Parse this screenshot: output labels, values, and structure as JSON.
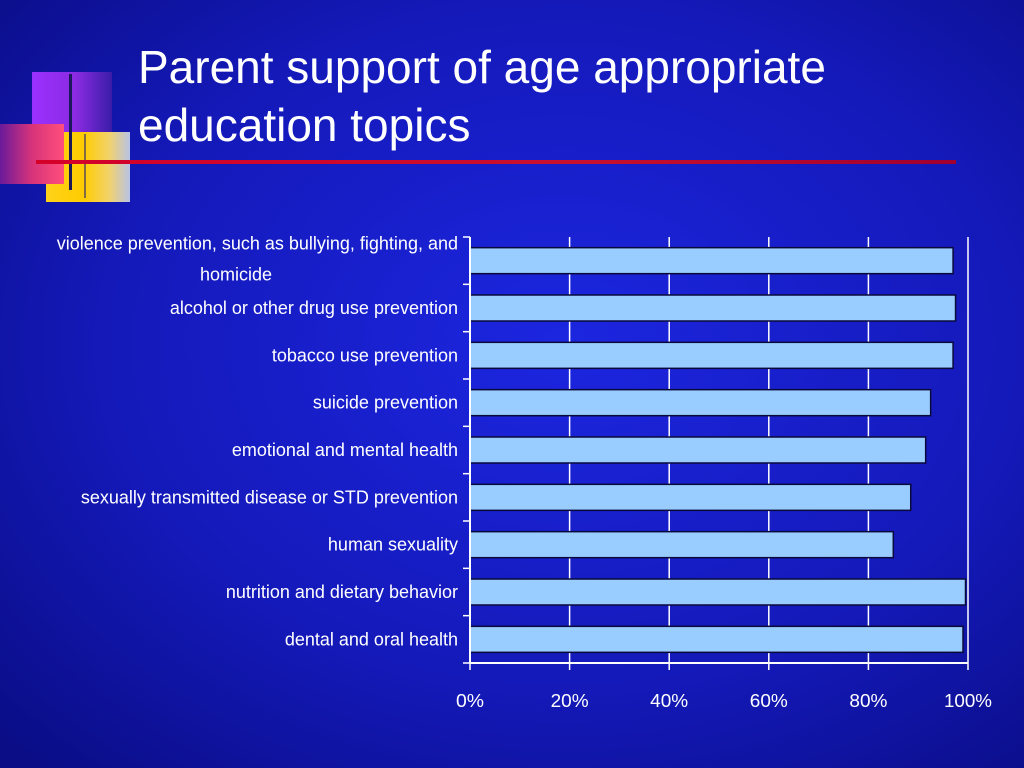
{
  "slide": {
    "title_line1": "Parent support of age appropriate",
    "title_line2": "education topics"
  },
  "colors": {
    "background_center": "#1a22d8",
    "background_edge": "#0a0e8c",
    "bar_fill": "#99ccff",
    "bar_stroke": "#0a0a3a",
    "axis": "#ffffff",
    "title_rule": "#c8102e"
  },
  "chart_data": {
    "type": "bar",
    "orientation": "horizontal",
    "title": "",
    "xlabel": "",
    "ylabel": "",
    "xlim": [
      0,
      100
    ],
    "x_ticks": [
      "0%",
      "20%",
      "40%",
      "60%",
      "80%",
      "100%"
    ],
    "grid": "vertical",
    "legend": "none",
    "categories": [
      [
        "violence prevention, such as bullying, fighting, and",
        "homicide"
      ],
      [
        "alcohol or other drug use prevention"
      ],
      [
        "tobacco use prevention"
      ],
      [
        "suicide prevention"
      ],
      [
        "emotional and mental health"
      ],
      [
        "sexually transmitted disease or STD prevention"
      ],
      [
        "human sexuality"
      ],
      [
        "nutrition and dietary behavior"
      ],
      [
        "dental and oral health"
      ]
    ],
    "values": [
      97,
      97.5,
      97,
      92.5,
      91.5,
      88.5,
      85,
      99.5,
      99
    ]
  }
}
